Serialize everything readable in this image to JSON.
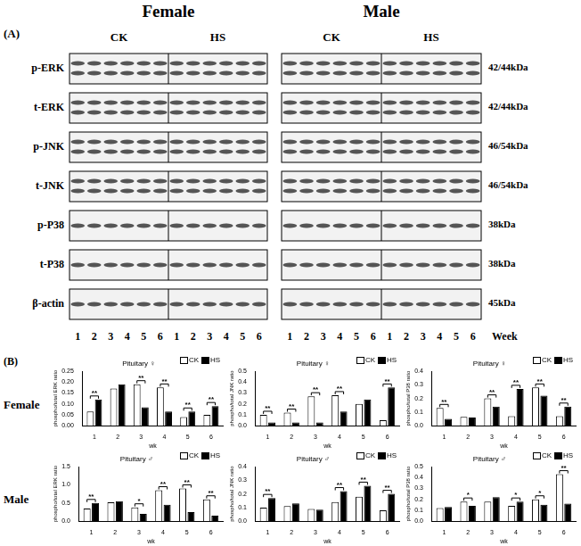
{
  "panel_a": {
    "label": "(A)",
    "groups": [
      "Female",
      "Male"
    ],
    "conditions": [
      "CK",
      "HS"
    ],
    "rows": [
      {
        "name": "p-ERK",
        "size": "42/44kDa"
      },
      {
        "name": "t-ERK",
        "size": "42/44kDa"
      },
      {
        "name": "p-JNK",
        "size": "46/54kDa"
      },
      {
        "name": "t-JNK",
        "size": "46/54kDa"
      },
      {
        "name": "p-P38",
        "size": "38kDa"
      },
      {
        "name": "t-P38",
        "size": "38kDa"
      },
      {
        "name": "β-actin",
        "size": "45kDa"
      }
    ],
    "lanes": [
      "1",
      "2",
      "3",
      "4",
      "5",
      "6"
    ],
    "lane_axis": "Week"
  },
  "panel_b": {
    "label": "(B)",
    "row_labels": [
      "Female",
      "Male"
    ]
  },
  "chart_data": [
    {
      "type": "bar",
      "title": "Pituitary ♀",
      "x_label": "wk",
      "y_label": "phospho/total ERK ratio",
      "categories": [
        "1",
        "2",
        "3",
        "4",
        "5",
        "6"
      ],
      "series": [
        {
          "name": "CK",
          "color": "#ffffff",
          "values": [
            0.065,
            0.17,
            0.19,
            0.175,
            0.04,
            0.05
          ]
        },
        {
          "name": "HS",
          "color": "#000000",
          "values": [
            0.12,
            0.19,
            0.085,
            0.065,
            0.065,
            0.09
          ]
        }
      ],
      "ylim": [
        0,
        0.25
      ],
      "yticks": [
        {
          "value": 0,
          "label": "0.00"
        },
        0.05,
        {
          "value": 0.1,
          "label": "0.10"
        },
        0.15,
        {
          "value": 0.2,
          "label": "0.20"
        },
        0.25
      ],
      "annotations": [
        {
          "category": "1",
          "label": "**"
        },
        {
          "category": "3",
          "label": "**"
        },
        {
          "category": "4",
          "label": "**"
        },
        {
          "category": "5",
          "label": "**"
        },
        {
          "category": "6",
          "label": "**"
        }
      ],
      "legend": "top-right",
      "grid": false
    },
    {
      "type": "bar",
      "title": "Pituitary ♀",
      "x_label": "wk",
      "y_label": "phospho/total JNK ratio",
      "categories": [
        "1",
        "2",
        "3",
        "4",
        "5",
        "6"
      ],
      "series": [
        {
          "name": "CK",
          "color": "#ffffff",
          "values": [
            0.1,
            0.12,
            0.27,
            0.28,
            0.2,
            0.05
          ]
        },
        {
          "name": "HS",
          "color": "#000000",
          "values": [
            0.03,
            0.03,
            0.03,
            0.13,
            0.24,
            0.35
          ]
        }
      ],
      "ylim": [
        0,
        0.5
      ],
      "yticks": [
        {
          "value": 0,
          "label": "0.0"
        },
        0.1,
        0.2,
        0.3,
        0.4,
        0.5
      ],
      "annotations": [
        {
          "category": "1",
          "label": "**"
        },
        {
          "category": "2",
          "label": "**"
        },
        {
          "category": "3",
          "label": "**"
        },
        {
          "category": "4",
          "label": "**"
        },
        {
          "category": "6",
          "label": "**"
        }
      ],
      "legend": "top-right",
      "grid": false
    },
    {
      "type": "bar",
      "title": "Pituitary ♀",
      "x_label": "wk",
      "y_label": "phospho/total P38 ratio",
      "categories": [
        "1",
        "2",
        "3",
        "4",
        "5",
        "6"
      ],
      "series": [
        {
          "name": "CK",
          "color": "#ffffff",
          "values": [
            0.13,
            0.065,
            0.2,
            0.07,
            0.28,
            0.07
          ]
        },
        {
          "name": "HS",
          "color": "#000000",
          "values": [
            0.05,
            0.06,
            0.14,
            0.27,
            0.22,
            0.14
          ]
        }
      ],
      "ylim": [
        0,
        0.4
      ],
      "yticks": [
        {
          "value": 0,
          "label": "0.0"
        },
        0.1,
        0.2,
        0.3,
        0.4
      ],
      "annotations": [
        {
          "category": "1",
          "label": "**"
        },
        {
          "category": "3",
          "label": "**"
        },
        {
          "category": "4",
          "label": "**"
        },
        {
          "category": "5",
          "label": "**"
        },
        {
          "category": "6",
          "label": "**"
        }
      ],
      "legend": "top-right",
      "grid": false
    },
    {
      "type": "bar",
      "title": "Pituitary ♂",
      "x_label": "wk",
      "y_label": "phospho/total ERK ratio",
      "categories": [
        "1",
        "2",
        "3",
        "4",
        "5",
        "6"
      ],
      "series": [
        {
          "name": "CK",
          "color": "#ffffff",
          "values": [
            0.35,
            0.52,
            0.38,
            0.85,
            0.9,
            0.6
          ]
        },
        {
          "name": "HS",
          "color": "#000000",
          "values": [
            0.5,
            0.55,
            0.2,
            0.45,
            0.25,
            0.15
          ]
        }
      ],
      "ylim": [
        0,
        1.5
      ],
      "yticks": [
        {
          "value": 0,
          "label": "0.0"
        },
        0.5,
        {
          "value": 1,
          "label": "1.0"
        },
        1.5
      ],
      "annotations": [
        {
          "category": "1",
          "label": "**"
        },
        {
          "category": "3",
          "label": "*"
        },
        {
          "category": "4",
          "label": "**"
        },
        {
          "category": "5",
          "label": "**"
        },
        {
          "category": "6",
          "label": "**"
        }
      ],
      "legend": "top-right",
      "grid": false
    },
    {
      "type": "bar",
      "title": "Pituitary ♂",
      "x_label": "wk",
      "y_label": "phospho/total JNK ratio",
      "categories": [
        "1",
        "2",
        "3",
        "4",
        "5",
        "6"
      ],
      "series": [
        {
          "name": "CK",
          "color": "#ffffff",
          "values": [
            0.1,
            0.11,
            0.09,
            0.14,
            0.18,
            0.08
          ]
        },
        {
          "name": "HS",
          "color": "#000000",
          "values": [
            0.17,
            0.13,
            0.085,
            0.22,
            0.26,
            0.2
          ]
        }
      ],
      "ylim": [
        0,
        0.4
      ],
      "yticks": [
        {
          "value": 0,
          "label": "0.0"
        },
        0.1,
        0.2,
        0.3,
        0.4
      ],
      "annotations": [
        {
          "category": "1",
          "label": "**"
        },
        {
          "category": "4",
          "label": "**"
        },
        {
          "category": "5",
          "label": "**"
        },
        {
          "category": "6",
          "label": "**"
        }
      ],
      "legend": "top-right",
      "grid": false
    },
    {
      "type": "bar",
      "title": "Pituitary ♂",
      "x_label": "wk",
      "y_label": "phospho/total P38 ratio",
      "categories": [
        "1",
        "2",
        "3",
        "4",
        "5",
        "6"
      ],
      "series": [
        {
          "name": "CK",
          "color": "#ffffff",
          "values": [
            0.12,
            0.18,
            0.18,
            0.14,
            0.2,
            0.43
          ]
        },
        {
          "name": "HS",
          "color": "#000000",
          "values": [
            0.13,
            0.14,
            0.22,
            0.18,
            0.15,
            0.16
          ]
        }
      ],
      "ylim": [
        0,
        0.5
      ],
      "yticks": [
        {
          "value": 0,
          "label": "0.0"
        },
        0.1,
        0.2,
        0.3,
        0.4,
        0.5
      ],
      "annotations": [
        {
          "category": "2",
          "label": "*"
        },
        {
          "category": "4",
          "label": "*"
        },
        {
          "category": "5",
          "label": "*"
        },
        {
          "category": "6",
          "label": "**"
        }
      ],
      "legend": "top-right",
      "grid": false
    }
  ]
}
